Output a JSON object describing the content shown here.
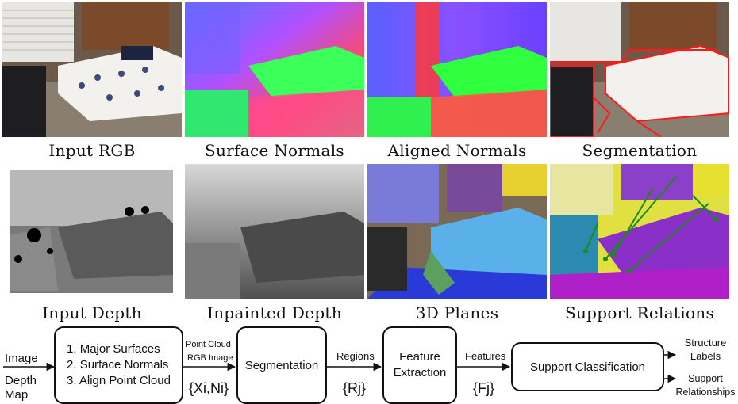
{
  "panels": {
    "row1": [
      "Input RGB",
      "Surface Normals",
      "Aligned Normals",
      "Segmentation"
    ],
    "row2": [
      "Input Depth",
      "Inpainted Depth",
      "3D Planes",
      "Support Relations"
    ]
  },
  "pipeline": {
    "input_image": "Image",
    "input_depth": "Depth Map",
    "stage1_items": [
      "1. Major Surfaces",
      "2. Surface Normals",
      "3. Align Point Cloud"
    ],
    "edge1_labels": [
      "Point Cloud",
      "RGB Image"
    ],
    "edge1_set": "{Xi,Ni}",
    "stage2": "Segmentation",
    "edge2_label": "Regions",
    "edge2_set": "{Rj}",
    "stage3": "Feature Extraction",
    "edge3_label": "Features",
    "edge3_set": "{Fj}",
    "stage4": "Support Classification",
    "outputs": [
      "Structure Labels",
      "Support Relationships"
    ]
  }
}
